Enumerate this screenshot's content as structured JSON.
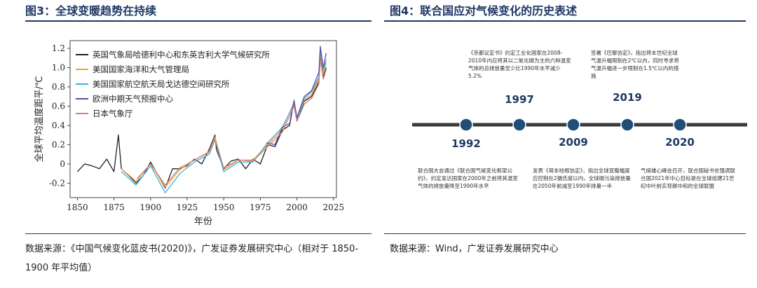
{
  "left": {
    "title": "图3：全球变暖趋势在持续",
    "source": "数据来源：《中国气候变化蓝皮书(2020)》，广发证券发展研究中心（相对于 1850-1900 年平均值）",
    "chart_data": {
      "type": "line",
      "title": "",
      "xlabel": "年份",
      "ylabel": "全球平均温度距平/℃",
      "xlim": [
        1845,
        2027
      ],
      "ylim": [
        -0.35,
        1.28
      ],
      "x_ticks": [
        1850,
        1875,
        1900,
        1925,
        1950,
        1975,
        2000,
        2025
      ],
      "y_ticks": [
        -0.2,
        0,
        0.2,
        0.4,
        0.6,
        0.8,
        1.0,
        1.2
      ],
      "y_tick_labels": [
        "-0.2",
        "0",
        "0.2",
        "0.4",
        "0.6",
        "0.8",
        "1.0",
        "1.2"
      ],
      "legend": [
        "英国气象局哈德利中心和东英吉利大学气候研究所",
        "美国国家海洋和大气管理局",
        "美国国家航空航天局戈达德空间研究所",
        "欧洲中期天气预报中心",
        "日本气象厅"
      ],
      "legend_position": "top-left",
      "colors": [
        "#222222",
        "#f0a030",
        "#3ab0e0",
        "#5a4aa8",
        "#d08080"
      ],
      "series": [
        {
          "name": "英国气象局哈德利中心和东英吉利大学气候研究所",
          "x": [
            1850,
            1855,
            1860,
            1865,
            1870,
            1875,
            1878,
            1880,
            1885,
            1890,
            1895,
            1900,
            1905,
            1910,
            1915,
            1920,
            1925,
            1930,
            1935,
            1940,
            1944,
            1945,
            1950,
            1955,
            1960,
            1965,
            1970,
            1975,
            1980,
            1985,
            1990,
            1995,
            1998,
            2000,
            2005,
            2010,
            2015,
            2016,
            2018,
            2020
          ],
          "y": [
            -0.08,
            0.0,
            -0.02,
            -0.05,
            0.05,
            -0.08,
            0.3,
            -0.05,
            -0.12,
            -0.2,
            -0.12,
            0.02,
            -0.12,
            -0.25,
            -0.05,
            -0.05,
            -0.02,
            0.05,
            0.0,
            0.15,
            0.3,
            0.15,
            -0.05,
            0.03,
            0.05,
            -0.05,
            0.05,
            0.0,
            0.2,
            0.18,
            0.35,
            0.4,
            0.65,
            0.45,
            0.65,
            0.7,
            0.85,
            1.12,
            0.9,
            1.0
          ]
        },
        {
          "name": "美国国家海洋和大气管理局",
          "x": [
            1880,
            1890,
            1900,
            1910,
            1920,
            1930,
            1940,
            1944,
            1950,
            1960,
            1970,
            1980,
            1990,
            1998,
            2000,
            2005,
            2010,
            2015,
            2016,
            2018,
            2020
          ],
          "y": [
            -0.05,
            -0.18,
            0.0,
            -0.24,
            -0.06,
            0.04,
            0.13,
            0.28,
            -0.06,
            0.04,
            0.04,
            0.2,
            0.36,
            0.64,
            0.46,
            0.66,
            0.72,
            0.88,
            1.15,
            0.94,
            1.05
          ]
        },
        {
          "name": "美国国家航空航天局戈达德空间研究所",
          "x": [
            1880,
            1890,
            1900,
            1910,
            1920,
            1930,
            1940,
            1944,
            1950,
            1960,
            1970,
            1980,
            1990,
            1998,
            2000,
            2005,
            2010,
            2015,
            2016,
            2018,
            2020
          ],
          "y": [
            -0.08,
            -0.22,
            -0.02,
            -0.3,
            -0.1,
            0.02,
            0.1,
            0.25,
            -0.08,
            0.02,
            0.02,
            0.22,
            0.38,
            0.62,
            0.45,
            0.68,
            0.75,
            0.9,
            1.18,
            0.97,
            1.08
          ]
        },
        {
          "name": "欧洲中期天气预报中心",
          "x": [
            1979,
            1985,
            1990,
            1995,
            1998,
            2000,
            2005,
            2010,
            2015,
            2016,
            2018,
            2020
          ],
          "y": [
            0.22,
            0.2,
            0.38,
            0.42,
            0.66,
            0.48,
            0.7,
            0.76,
            0.95,
            1.22,
            1.0,
            1.15
          ]
        },
        {
          "name": "日本气象厅",
          "x": [
            1891,
            1900,
            1910,
            1920,
            1930,
            1940,
            1944,
            1950,
            1960,
            1970,
            1980,
            1990,
            1998,
            2000,
            2005,
            2010,
            2015,
            2016,
            2018,
            2020
          ],
          "y": [
            -0.15,
            0.0,
            -0.22,
            -0.04,
            0.04,
            0.12,
            0.26,
            -0.04,
            0.04,
            0.03,
            0.18,
            0.33,
            0.6,
            0.44,
            0.62,
            0.68,
            0.83,
            1.08,
            0.88,
            0.98
          ]
        }
      ]
    }
  },
  "right": {
    "title": "图4：联合国应对气候变化的历史表述",
    "source": "数据来源：Wind，广发证券发展研究中心",
    "timeline": [
      {
        "year": "1992",
        "note": "联合国大会通过《联合国气候变化框架公约》，约定发达国家在2000年之前将其温室气体的排放量降至1990年水平"
      },
      {
        "year": "1997",
        "note": "《京都议定书》约定工业化国家在2008-2010年内应将其以二氧化碳为主的六种温室气体的总排放量至少比1990年水平减少5.2%"
      },
      {
        "year": "2009",
        "note": "发表《哥本哈根协定》，指出全球变暖幅度应控制在2摄氏度以内，全球碳污染排放量在2050年前减至1990年排量一半"
      },
      {
        "year": "2019",
        "note": "签署《巴黎协定》，指出将本世纪全球气温升幅限制在2℃以内，同时寻求将气温升幅进一步限制在1.5℃以内的措施"
      },
      {
        "year": "2020",
        "note": "气候雄心峰会召开，联合国秘书长强调联合国2021年中心目标是在全球组建21世纪中叶前实现碳中和的全球联盟"
      }
    ],
    "colors": {
      "line": "#3a3a3a",
      "dot": "#1f4e79",
      "year": "#1f3864"
    }
  }
}
